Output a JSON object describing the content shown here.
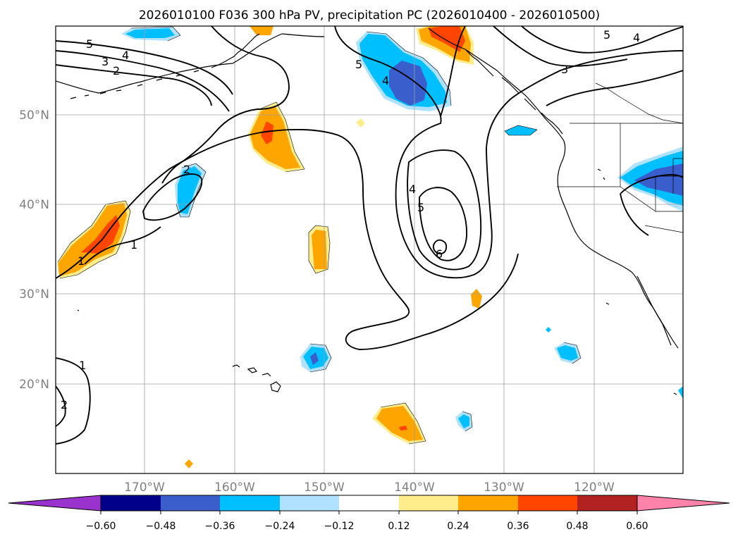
{
  "figure": {
    "title": "2026010100 F036 300 hPa PV, precipitation PC (2026010400 - 2026010500)"
  },
  "map": {
    "lat_labels": [
      "50°N",
      "40°N",
      "30°N",
      "20°N"
    ],
    "lon_labels": [
      "170°W",
      "160°W",
      "150°W",
      "140°W",
      "130°W",
      "120°W"
    ],
    "contour_labels": [
      "5",
      "4",
      "3",
      "2",
      "5",
      "4",
      "2",
      "1",
      "1",
      "4",
      "5",
      "6",
      "5",
      "4",
      "3",
      "1",
      "2"
    ],
    "colors": {
      "contour": "#000000",
      "grid": "#a0a0a0",
      "coast": "#000000"
    }
  },
  "colorbar": {
    "tick_labels": [
      "−0.60",
      "−0.48",
      "−0.36",
      "−0.24",
      "−0.12",
      "0.12",
      "0.24",
      "0.36",
      "0.48",
      "0.60"
    ],
    "colors": [
      "#9a32cd",
      "#00008b",
      "#3a5fcd",
      "#00bfff",
      "#b0e2ff",
      "#ffffff",
      "#ffec8b",
      "#ffa500",
      "#ff4500",
      "#b22222",
      "#ff82ab"
    ]
  }
}
